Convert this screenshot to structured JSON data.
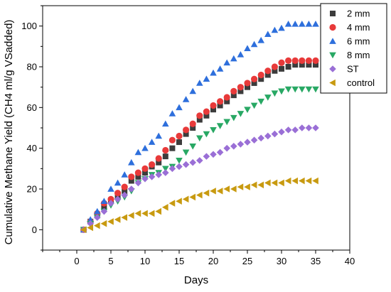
{
  "chart_data": {
    "type": "scatter",
    "title": "",
    "xlabel": "Days",
    "ylabel": "Cumulative Methane Yield (CH4 ml/g VSadded)",
    "xlim": [
      -5,
      40
    ],
    "ylim": [
      -10,
      110
    ],
    "xticks": [
      0,
      5,
      10,
      15,
      20,
      25,
      30,
      35,
      40
    ],
    "yticks": [
      0,
      20,
      40,
      60,
      80,
      100
    ],
    "grid": false,
    "legend_position": "top-right",
    "x": [
      1,
      2,
      3,
      4,
      5,
      6,
      7,
      8,
      9,
      10,
      11,
      12,
      13,
      14,
      15,
      16,
      17,
      18,
      19,
      20,
      21,
      22,
      23,
      24,
      25,
      26,
      27,
      28,
      29,
      30,
      31,
      32,
      33,
      34,
      35
    ],
    "series": [
      {
        "name": "2 mm",
        "marker": "square",
        "color": "#3c3c3c",
        "values": [
          0,
          4,
          7,
          11,
          14,
          16,
          19,
          24,
          26,
          28,
          31,
          33,
          36,
          40,
          43,
          47,
          50,
          54,
          56,
          59,
          61,
          63,
          66,
          68,
          70,
          72,
          74,
          76,
          78,
          79,
          80,
          81,
          81,
          81,
          81
        ]
      },
      {
        "name": "4 mm",
        "marker": "circle",
        "color": "#e83a3a",
        "values": [
          0,
          4,
          8,
          13,
          15,
          18,
          21,
          26,
          28,
          30,
          32,
          35,
          39,
          44,
          46,
          49,
          52,
          56,
          58,
          61,
          63,
          65,
          68,
          70,
          72,
          74,
          76,
          78,
          80,
          82,
          83,
          83,
          83,
          83,
          83
        ]
      },
      {
        "name": "6 mm",
        "marker": "triangle-up",
        "color": "#2e6fdc",
        "values": [
          0,
          5,
          9,
          14,
          20,
          23,
          27,
          33,
          38,
          40,
          43,
          46,
          52,
          57,
          60,
          64,
          68,
          72,
          74,
          77,
          79,
          82,
          84,
          86,
          89,
          91,
          93,
          96,
          98,
          99,
          101,
          101,
          101,
          101,
          101
        ]
      },
      {
        "name": "8 mm",
        "marker": "triangle-down",
        "color": "#28a864",
        "values": [
          0,
          3,
          6,
          9,
          12,
          14,
          16,
          19,
          23,
          25,
          27,
          28,
          30,
          31,
          34,
          38,
          41,
          45,
          47,
          49,
          51,
          53,
          55,
          57,
          59,
          61,
          63,
          65,
          67,
          68,
          69,
          69,
          69,
          69,
          69
        ]
      },
      {
        "name": "ST",
        "marker": "diamond",
        "color": "#9a6fd6",
        "values": [
          0,
          3,
          6,
          9,
          13,
          15,
          17,
          20,
          23,
          25,
          26,
          27,
          28,
          30,
          31,
          32,
          33,
          34,
          36,
          37,
          38,
          40,
          41,
          42,
          43,
          44,
          45,
          46,
          47,
          48,
          49,
          49,
          50,
          50,
          50
        ]
      },
      {
        "name": "control",
        "marker": "triangle-left",
        "color": "#c89a10",
        "values": [
          0,
          1,
          2,
          3,
          4,
          5,
          6,
          7,
          8,
          8,
          8,
          9,
          11,
          13,
          14,
          15,
          16,
          17,
          18,
          19,
          19,
          20,
          20,
          21,
          21,
          22,
          22,
          23,
          23,
          23,
          24,
          24,
          24,
          24,
          24
        ]
      }
    ]
  }
}
